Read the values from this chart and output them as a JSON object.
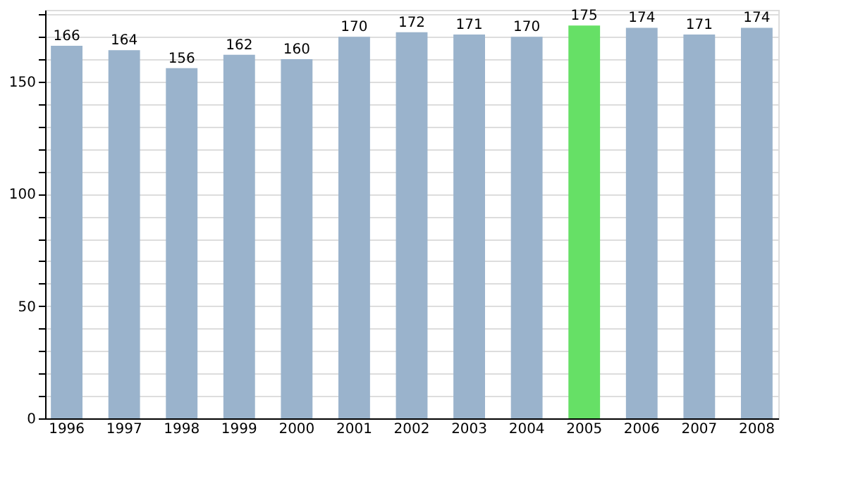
{
  "chart_data": {
    "type": "bar",
    "categories": [
      "1996",
      "1997",
      "1998",
      "1999",
      "2000",
      "2001",
      "2002",
      "2003",
      "2004",
      "2005",
      "2006",
      "2007",
      "2008"
    ],
    "values": [
      166,
      164,
      156,
      162,
      160,
      170,
      172,
      171,
      170,
      175,
      174,
      171,
      174
    ],
    "colors": [
      "#9ab3cc",
      "#9ab3cc",
      "#9ab3cc",
      "#9ab3cc",
      "#9ab3cc",
      "#9ab3cc",
      "#9ab3cc",
      "#9ab3cc",
      "#9ab3cc",
      "#66e066",
      "#9ab3cc",
      "#9ab3cc",
      "#9ab3cc"
    ],
    "data_labels": true,
    "ylim": [
      0,
      182
    ],
    "yticks": [
      0,
      {
        "value": 10,
        "label": null
      },
      {
        "value": 20,
        "label": null
      },
      {
        "value": 30,
        "label": null
      },
      {
        "value": 40,
        "label": null
      },
      50,
      {
        "value": 60,
        "label": null
      },
      {
        "value": 70,
        "label": null
      },
      {
        "value": 80,
        "label": null
      },
      {
        "value": 90,
        "label": null
      },
      100,
      {
        "value": 110,
        "label": null
      },
      {
        "value": 120,
        "label": null
      },
      {
        "value": 130,
        "label": null
      },
      {
        "value": 140,
        "label": null
      },
      150,
      {
        "value": 160,
        "label": null
      },
      {
        "value": 170,
        "label": null
      },
      {
        "value": 180,
        "label": null
      }
    ],
    "grid": "y"
  }
}
